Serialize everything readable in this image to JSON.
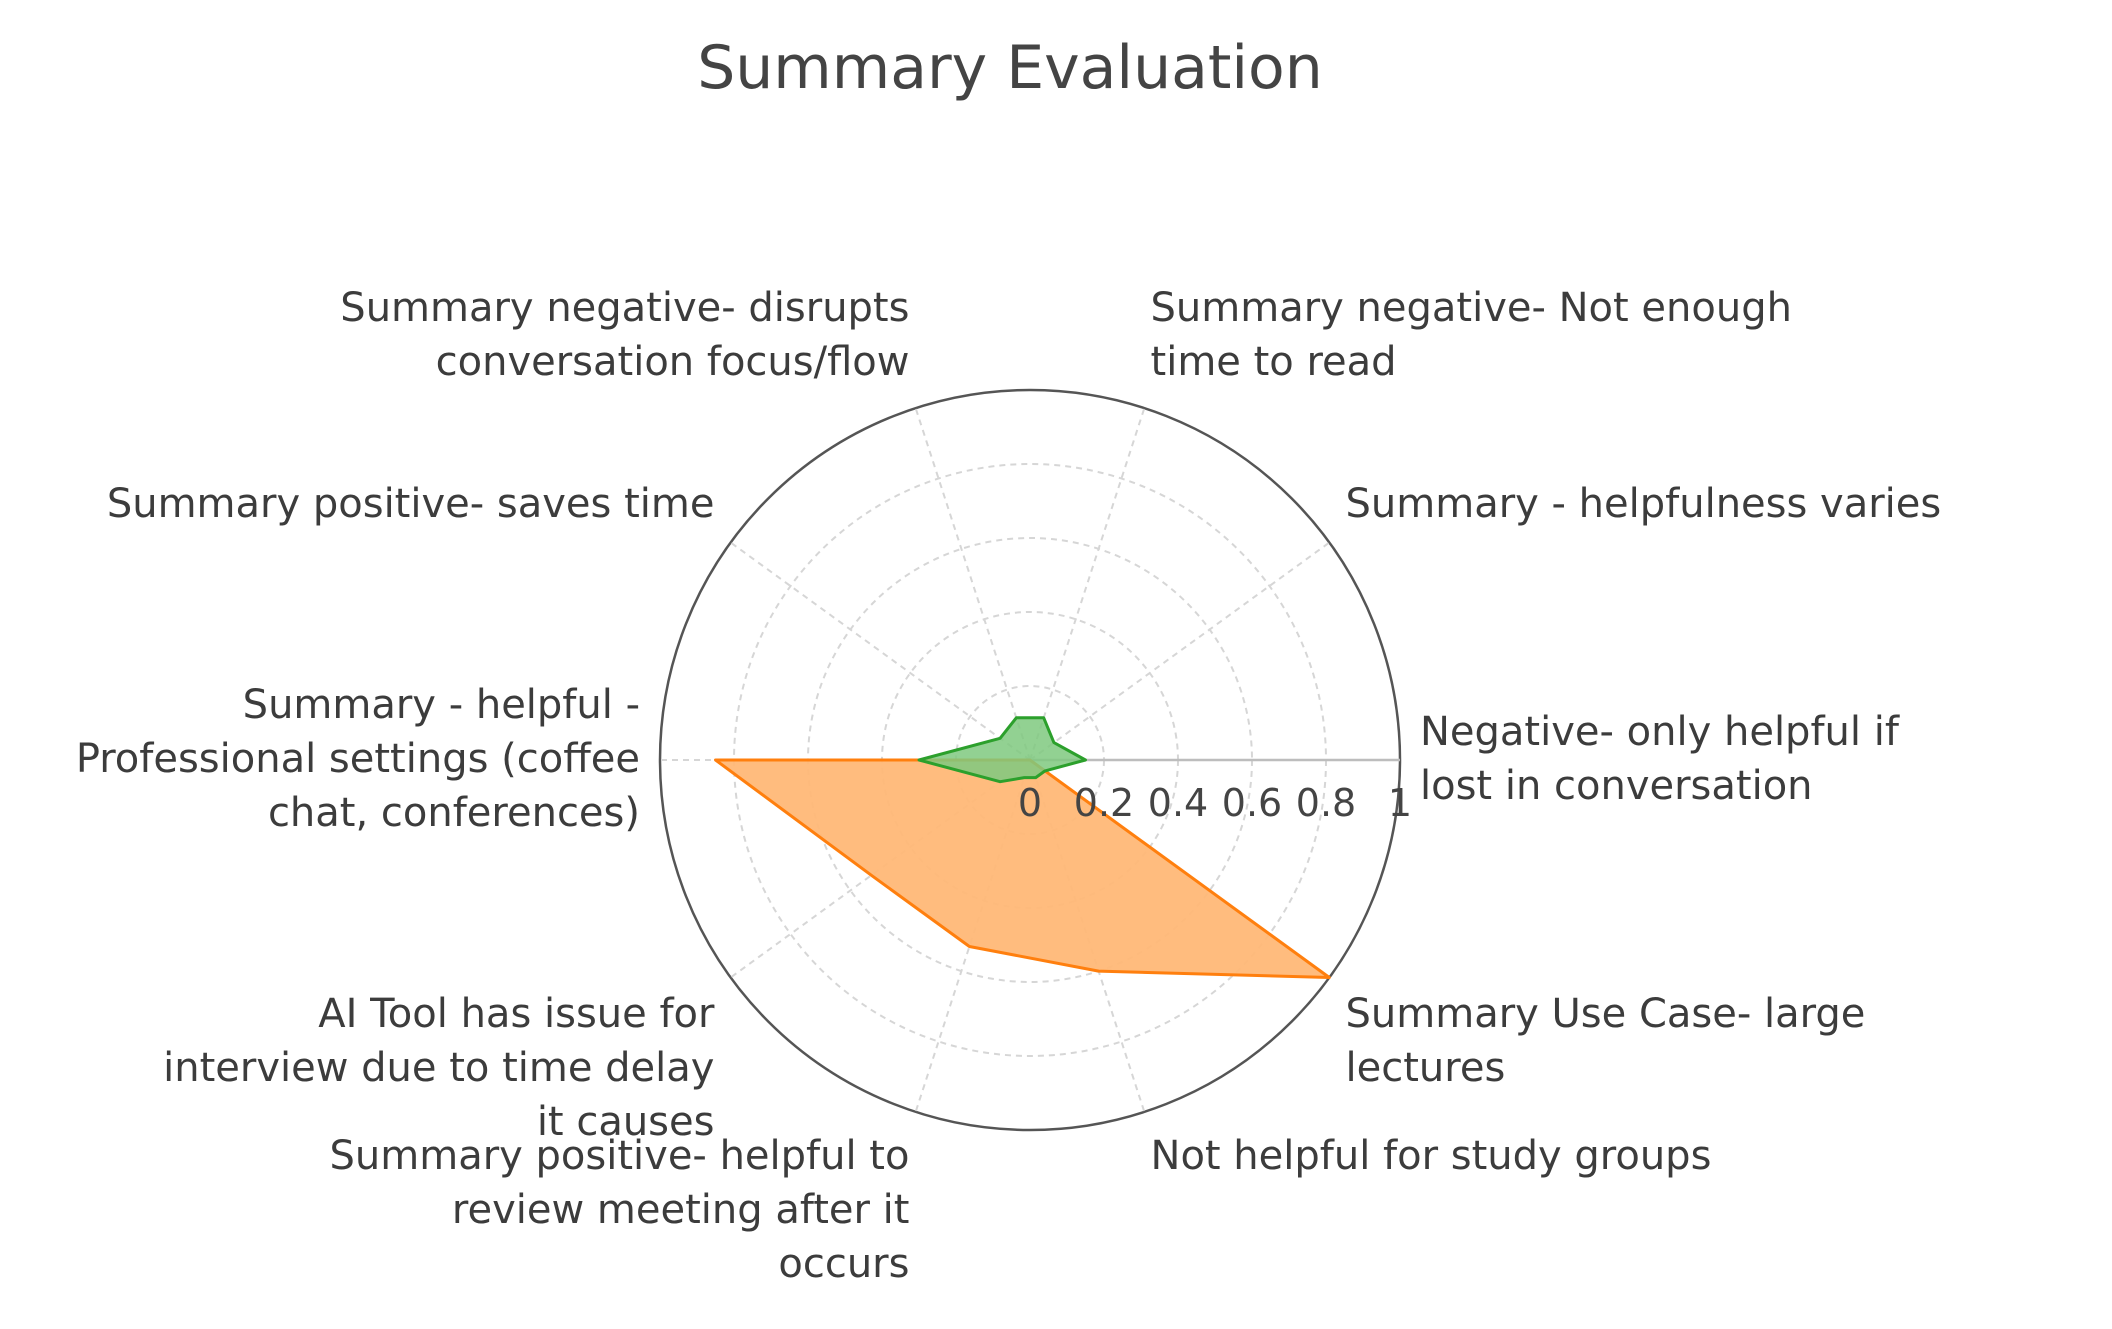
{
  "chart_data": {
    "type": "radar",
    "title": "Summary Evaluation",
    "categories": [
      "Negative- only helpful if lost in conversation",
      "Summary - helpfulness varies",
      "Summary negative- Not enough time to read",
      "Summary negative- disrupts conversation focus/flow",
      "Summary positive- saves time",
      "Summary - helpful - Professional settings (coffee chat, conferences)",
      "AI Tool has issue for interview due to time delay it causes",
      "Summary positive- helpful to review meeting after it occurs",
      "Not helpful for study groups",
      "Summary Use Case- large lectures"
    ],
    "category_lines": [
      [
        "Negative- only helpful if",
        "lost in conversation"
      ],
      [
        "Summary - helpfulness varies"
      ],
      [
        "Summary negative- Not enough",
        "time to read"
      ],
      [
        "Summary negative- disrupts",
        "conversation focus/flow"
      ],
      [
        "Summary positive- saves time"
      ],
      [
        "Summary - helpful -",
        "Professional settings (coffee",
        "chat, conferences)"
      ],
      [
        "AI Tool has issue for",
        "interview due to time delay",
        "it causes"
      ],
      [
        "Summary positive- helpful to",
        "review meeting after it",
        "occurs"
      ],
      [
        "Not helpful for study groups"
      ],
      [
        "Summary Use Case- large",
        "lectures"
      ]
    ],
    "radial_ticks": [
      "0",
      "0.2",
      "0.4",
      "0.6",
      "0.8",
      "1"
    ],
    "radial_range": [
      0,
      1
    ],
    "grid": true,
    "legend": "none",
    "series": [
      {
        "color": "#ff7f0e",
        "fill": "#ffb877",
        "values": [
          0,
          0,
          0,
          0,
          0,
          0.85,
          0.53,
          0.53,
          0.6,
          1.0
        ]
      },
      {
        "color": "#2ca02c",
        "fill": "#7fc97f",
        "values": [
          0.15,
          0.08,
          0.12,
          0.12,
          0.1,
          0.3,
          0.1,
          0.05,
          0.05,
          0.05
        ]
      }
    ]
  }
}
